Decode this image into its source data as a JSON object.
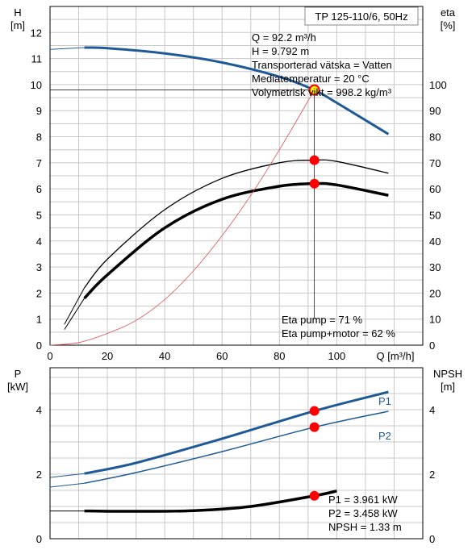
{
  "title": "TP 125-110/6, 50Hz",
  "colors": {
    "head": "#1f5a96",
    "p1": "#1f5a96",
    "p2": "#1f5a96",
    "eta": "#000000",
    "npsh": "#000000",
    "power_red": "#e05050",
    "marker": "#ff0000",
    "marker_hi": "#ffee00",
    "grid": "#c8c8c8"
  },
  "operating_point_info": {
    "q": "Q = 92.2 m³/h",
    "h": "H = 9.792 m",
    "liquid": "Transporterad vätska = Vatten",
    "temp": "Mediatemperatur = 20 °C",
    "density": "Volymetrisk vikt = 998.2 kg/m³"
  },
  "eta_info": {
    "pump": "Eta pump = 71 %",
    "total": "Eta pump+motor = 62 %"
  },
  "power_info": {
    "p1": "P1 = 3.961 kW",
    "p2": "P2 = 3.458 kW",
    "npsh": "NPSH = 1.33 m"
  },
  "top_axes": {
    "y_left_label": [
      "H",
      "[m]"
    ],
    "y_right_label": [
      "eta",
      "[%]"
    ],
    "x_label": "Q [m³/h]",
    "x_ticks": [
      "0",
      "20",
      "40",
      "60",
      "80",
      "100"
    ],
    "y_left_ticks": [
      "0",
      "1",
      "2",
      "3",
      "4",
      "5",
      "6",
      "7",
      "8",
      "9",
      "10",
      "11",
      "12"
    ],
    "y_right_ticks": [
      "0",
      "10",
      "20",
      "30",
      "40",
      "50",
      "60",
      "70",
      "80",
      "90",
      "100"
    ]
  },
  "bottom_axes": {
    "y_left_label": [
      "P",
      "[kW]"
    ],
    "y_right_label": [
      "NPSH",
      "[m]"
    ],
    "y_left_ticks": [
      "0",
      "2",
      "4"
    ],
    "y_right_ticks": [
      "0",
      "2",
      "4"
    ],
    "curve_labels": {
      "p1": "P1",
      "p2": "P2"
    }
  },
  "chart_data": [
    {
      "type": "line",
      "title": "TP 125-110/6, 50Hz",
      "xlabel": "Q [m³/h]",
      "ylabel": "H [m]",
      "y2label": "eta [%]",
      "xlim": [
        0,
        130
      ],
      "ylim": [
        0,
        13
      ],
      "y2lim": [
        0,
        130
      ],
      "grid": true,
      "series": [
        {
          "name": "H",
          "axis": "left",
          "x": [
            0,
            12,
            20,
            40,
            60,
            80,
            92.2,
            100,
            118
          ],
          "y": [
            11.35,
            11.42,
            11.4,
            11.2,
            10.85,
            10.3,
            9.792,
            9.3,
            8.1
          ]
        },
        {
          "name": "Eta pump",
          "axis": "right",
          "x": [
            5,
            12,
            20,
            40,
            60,
            80,
            92.2,
            100,
            118
          ],
          "y": [
            8,
            22,
            33,
            52,
            64,
            70,
            71,
            70.5,
            66
          ]
        },
        {
          "name": "Eta pump+motor",
          "axis": "right",
          "x": [
            5,
            12,
            20,
            40,
            60,
            80,
            92.2,
            100,
            118
          ],
          "y": [
            6,
            18,
            27,
            45,
            56,
            61,
            62,
            61.5,
            57.5
          ]
        },
        {
          "name": "System curve",
          "axis": "left",
          "x": [
            0,
            10,
            20,
            30,
            40,
            50,
            60,
            70,
            80,
            92.2
          ],
          "y": [
            0,
            0.1,
            0.45,
            0.95,
            1.75,
            2.85,
            4.2,
            5.75,
            7.5,
            9.792
          ]
        }
      ],
      "operating_point": {
        "q": 92.2,
        "h": 9.792,
        "eta_pump": 71,
        "eta_total": 62
      }
    },
    {
      "type": "line",
      "ylabel": "P [kW]",
      "y2label": "NPSH [m]",
      "xlim": [
        0,
        130
      ],
      "ylim": [
        0,
        5.3
      ],
      "y2lim": [
        0,
        5.3
      ],
      "grid": true,
      "series": [
        {
          "name": "P1",
          "axis": "left",
          "x": [
            0,
            12,
            30,
            60,
            92.2,
            118
          ],
          "y": [
            1.9,
            2.02,
            2.35,
            3.1,
            3.961,
            4.55
          ]
        },
        {
          "name": "P2",
          "axis": "left",
          "x": [
            0,
            12,
            30,
            60,
            92.2,
            118
          ],
          "y": [
            1.6,
            1.72,
            2.05,
            2.7,
            3.458,
            3.95
          ]
        },
        {
          "name": "NPSH",
          "axis": "right",
          "x": [
            0,
            12,
            30,
            50,
            70,
            92.2,
            100
          ],
          "y": [
            0.86,
            0.86,
            0.85,
            0.87,
            1.0,
            1.33,
            1.48
          ]
        }
      ],
      "operating_point": {
        "q": 92.2,
        "p1": 3.961,
        "p2": 3.458,
        "npsh": 1.33
      }
    }
  ]
}
